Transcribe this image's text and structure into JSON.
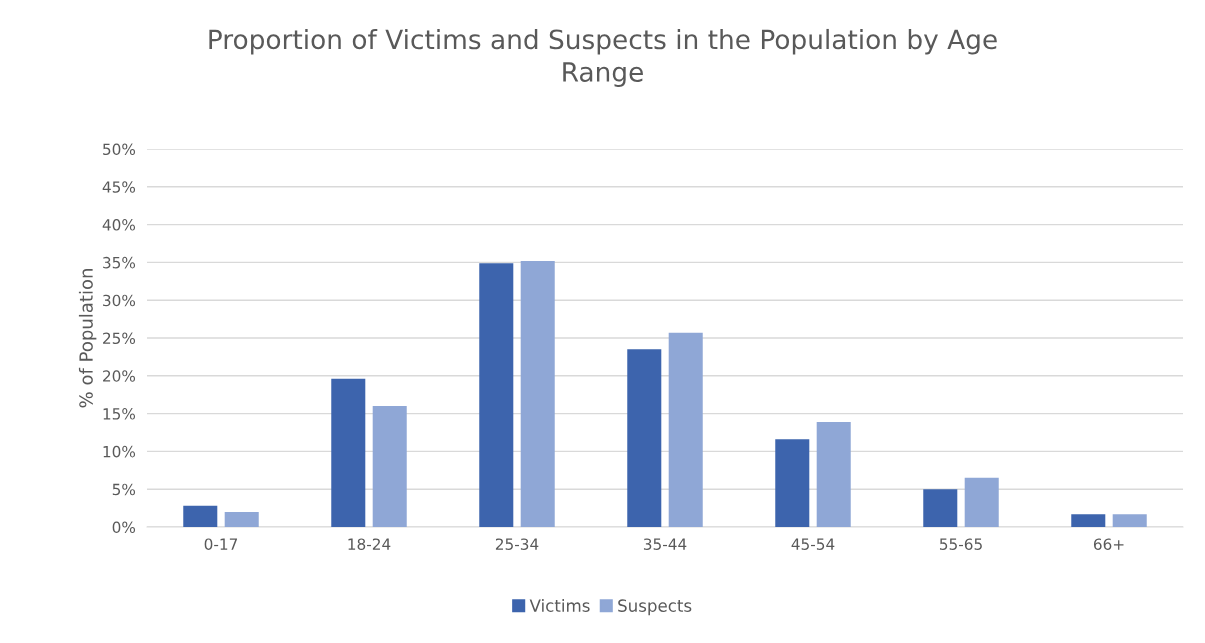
{
  "chart_data": {
    "type": "bar",
    "title": "Proportion of Victims and Suspects in the Population by Age\nRange",
    "ylabel": "% of Population",
    "categories": [
      "0-17",
      "18-24",
      "25-34",
      "35-44",
      "45-54",
      "55-65",
      "66+"
    ],
    "series": [
      {
        "name": "Victims",
        "color": "#3d64ad",
        "values": [
          2.8,
          19.6,
          34.9,
          23.5,
          11.6,
          5.0,
          1.7
        ]
      },
      {
        "name": "Suspects",
        "color": "#8fa7d6",
        "values": [
          2.0,
          16.0,
          35.2,
          25.7,
          13.9,
          6.5,
          1.7
        ]
      }
    ],
    "ylim": [
      0,
      50
    ],
    "yticks": [
      {
        "value": 0,
        "label": "0%"
      },
      {
        "value": 5,
        "label": "5%"
      },
      {
        "value": 10,
        "label": "10%"
      },
      {
        "value": 15,
        "label": "15%"
      },
      {
        "value": 20,
        "label": "20%"
      },
      {
        "value": 25,
        "label": "25%"
      },
      {
        "value": 30,
        "label": "30%"
      },
      {
        "value": 35,
        "label": "35%"
      },
      {
        "value": 40,
        "label": "40%"
      },
      {
        "value": 45,
        "label": "45%"
      },
      {
        "value": 50,
        "label": "50%"
      }
    ],
    "grid": "y",
    "legend": "bottom"
  }
}
